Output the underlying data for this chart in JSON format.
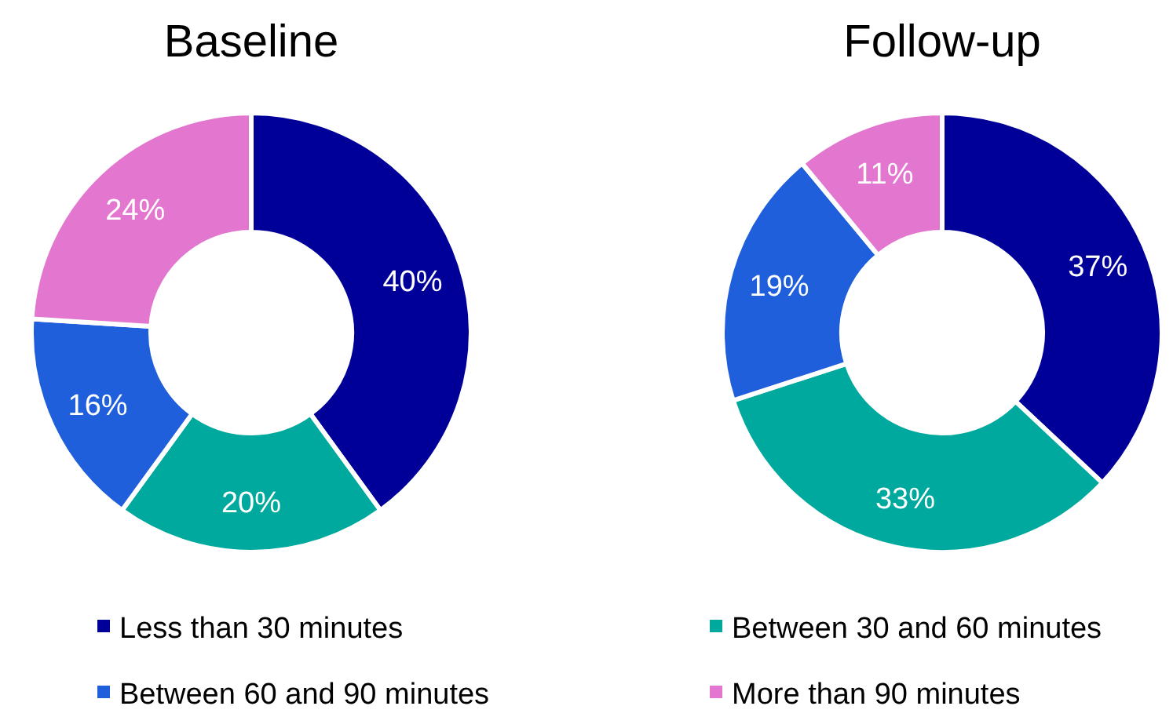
{
  "chart_data": [
    {
      "type": "donut",
      "title": "Baseline",
      "categories": [
        "Less than 30 minutes",
        "Between 30 and 60 minutes",
        "Between 60 and 90 minutes",
        "More than 90 minutes"
      ],
      "values": [
        40,
        20,
        16,
        24
      ],
      "colors": [
        "#000099",
        "#00a99d",
        "#1f5fdc",
        "#e377cf"
      ],
      "value_labels": [
        "40%",
        "20%",
        "16%",
        "24%"
      ],
      "legend": "bottom"
    },
    {
      "type": "donut",
      "title": "Follow-up",
      "categories": [
        null,
        null,
        null,
        null
      ],
      "values": [
        37,
        33,
        19,
        11
      ],
      "colors": [
        "#000099",
        "#00a99d",
        "#1f5fdc",
        "#e377cf"
      ],
      "value_labels": [
        "37%",
        "33%",
        "19%",
        "11%"
      ]
    }
  ]
}
